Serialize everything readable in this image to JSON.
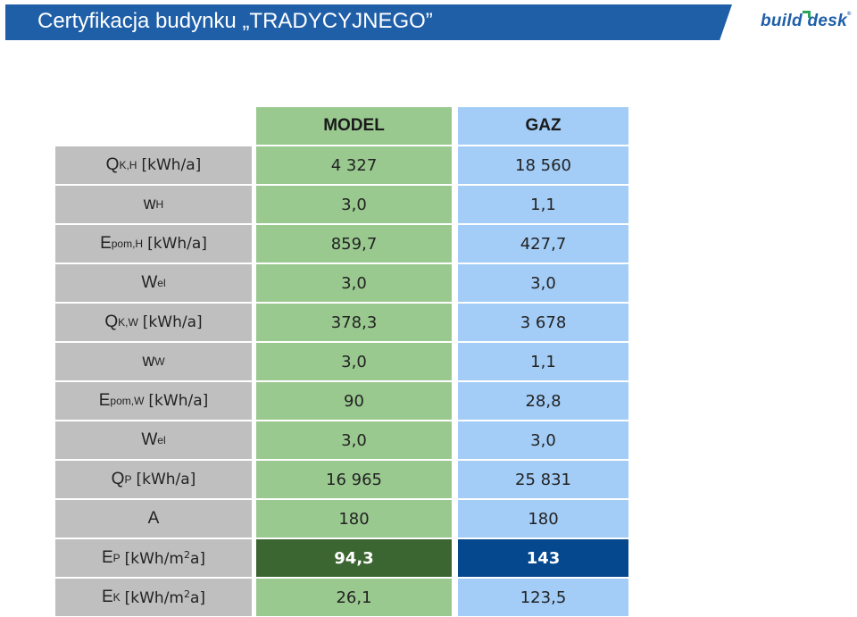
{
  "header": {
    "title": "Certyfikacja budynku „TRADYCYJNEGO”",
    "logo": "build desk",
    "logo_reg": "®"
  },
  "table": {
    "columns": [
      "MODEL",
      "GAZ"
    ],
    "rows": [
      {
        "sym": "Q",
        "sub": "K,H",
        "unit": "[kWh/a]",
        "sup": "",
        "unit_tail": "",
        "model": "4 327",
        "gaz": "18 560"
      },
      {
        "sym": "w",
        "sub": "H",
        "unit": "",
        "sup": "",
        "unit_tail": "",
        "model": "3,0",
        "gaz": "1,1"
      },
      {
        "sym": "E",
        "sub": "pom,H",
        "unit": "[kWh/a]",
        "sup": "",
        "unit_tail": "",
        "model": "859,7",
        "gaz": "427,7"
      },
      {
        "sym": "W",
        "sub": "el",
        "unit": "",
        "sup": "",
        "unit_tail": "",
        "model": "3,0",
        "gaz": "3,0"
      },
      {
        "sym": "Q",
        "sub": "K,W",
        "unit": "[kWh/a]",
        "sup": "",
        "unit_tail": "",
        "model": "378,3",
        "gaz": "3 678"
      },
      {
        "sym": "w",
        "sub": "W",
        "unit": "",
        "sup": "",
        "unit_tail": "",
        "model": "3,0",
        "gaz": "1,1"
      },
      {
        "sym": "E",
        "sub": "pom,W",
        "unit": "[kWh/a]",
        "sup": "",
        "unit_tail": "",
        "model": "90",
        "gaz": "28,8"
      },
      {
        "sym": "W",
        "sub": "el",
        "unit": "",
        "sup": "",
        "unit_tail": "",
        "model": "3,0",
        "gaz": "3,0"
      },
      {
        "sym": "Q",
        "sub": "P",
        "unit": "[kWh/a]",
        "sup": "",
        "unit_tail": "",
        "model": "16 965",
        "gaz": "25 831"
      },
      {
        "sym": "A",
        "sub": "",
        "unit": "",
        "sup": "",
        "unit_tail": "",
        "model": "180",
        "gaz": "180"
      },
      {
        "sym": "E",
        "sub": "P",
        "unit": "[kWh/m",
        "sup": "2",
        "unit_tail": "a]",
        "model": "94,3",
        "gaz": "143"
      },
      {
        "sym": "E",
        "sub": "K",
        "unit": "[kWh/m",
        "sup": "2",
        "unit_tail": "a]",
        "model": "26,1",
        "gaz": "123,5"
      }
    ]
  },
  "colors": {
    "title_bar": "#1f5fa8",
    "label_bg": "#bfbfbf",
    "model_bg": "#9ac990",
    "gaz_bg": "#a3cdf7",
    "model_highlight": "#3c6631",
    "gaz_highlight": "#06488e"
  }
}
